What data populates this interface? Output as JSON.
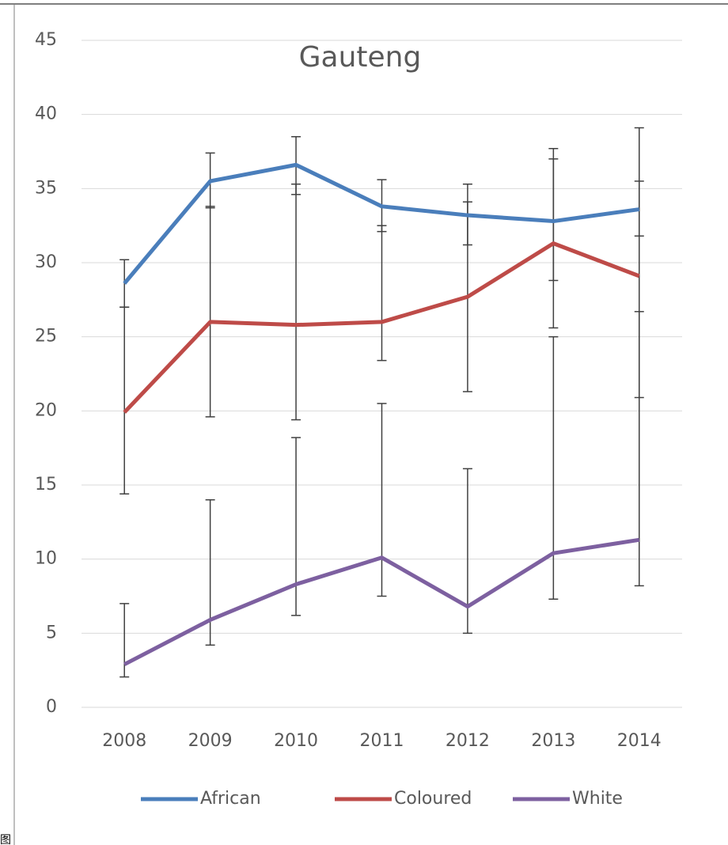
{
  "chart_data": {
    "type": "line",
    "title": "Gauteng",
    "categories": [
      "2008",
      "2009",
      "2010",
      "2011",
      "2012",
      "2013",
      "2014"
    ],
    "series": [
      {
        "name": "African",
        "color": "#4a7ebb",
        "values": [
          28.6,
          35.5,
          36.6,
          33.8,
          33.2,
          32.8,
          33.6
        ],
        "errors_plus": [
          1.6,
          1.9,
          1.9,
          1.8,
          2.1,
          4.9,
          5.5
        ],
        "errors_minus": [
          1.6,
          1.8,
          2.0,
          1.7,
          2.0,
          4.0,
          1.8
        ]
      },
      {
        "name": "Coloured",
        "color": "#be4b48",
        "values": [
          19.9,
          26.0,
          25.8,
          26.0,
          27.7,
          31.3,
          29.1
        ],
        "errors_plus": [
          7.1,
          7.8,
          9.5,
          6.5,
          6.4,
          5.7,
          6.4
        ],
        "errors_minus": [
          5.5,
          6.4,
          6.4,
          2.6,
          6.4,
          5.7,
          8.2
        ]
      },
      {
        "name": "White",
        "color": "#7d60a0",
        "values": [
          2.9,
          5.9,
          8.3,
          10.1,
          6.8,
          10.4,
          11.3
        ],
        "errors_plus": [
          4.1,
          8.1,
          9.9,
          10.4,
          9.3,
          14.6,
          15.4
        ],
        "errors_minus": [
          0.85,
          1.7,
          2.1,
          2.6,
          1.8,
          3.1,
          3.1
        ]
      }
    ],
    "ylim": [
      0,
      45
    ],
    "yticks": [
      0,
      5,
      10,
      15,
      20,
      25,
      30,
      35,
      40,
      45
    ],
    "grid": true,
    "legend": "bottom"
  },
  "corner_label": "图"
}
